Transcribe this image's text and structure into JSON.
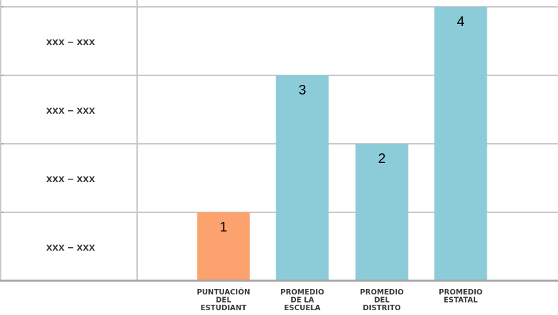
{
  "chart_data": {
    "type": "bar",
    "categories": [
      [
        "PUNTUACIÓN",
        "DEL",
        "ESTUDIANT"
      ],
      [
        "PROMEDIO",
        "DE LA",
        "ESCUELA"
      ],
      [
        "PROMEDIO",
        "DEL",
        "DISTRITO"
      ],
      [
        "PROMEDIO",
        "ESTATAL"
      ]
    ],
    "values": [
      1,
      3,
      2,
      4
    ],
    "data_labels": [
      "1",
      "3",
      "2",
      "4"
    ],
    "bar_colors": [
      "#fca26e",
      "#8ccbd8",
      "#8ccbd8",
      "#8ccbd8"
    ],
    "ylim": [
      0,
      4
    ],
    "y_band_labels": [
      "xxx – xxx",
      "xxx – xxx",
      "xxx – xxx",
      "xxx – xxx"
    ],
    "grid": true,
    "gridline_color": "#c8c8c8",
    "axis_color": "#a6a6a6"
  }
}
